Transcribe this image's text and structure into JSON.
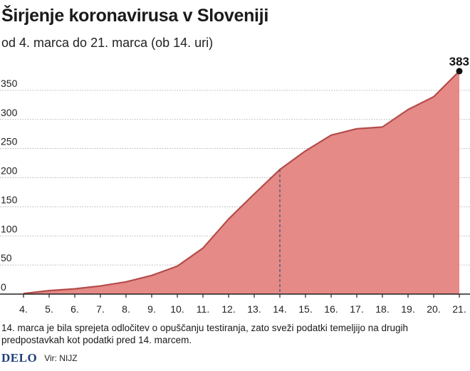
{
  "header": {
    "title": "Širjenje koronavirusa v Sloveniji",
    "subtitle": "od 4. marca do 21. marca (ob 14. uri)"
  },
  "note": "14. marca je bila sprejeta odločitev o opuščanju testiranja, zato sveži podatki temeljijo na drugih predpostavkah kot podatki pred 14. marcem.",
  "footer": {
    "logo": "DELO",
    "source": "Vir: NIJZ"
  },
  "colors": {
    "fill": "#e58a86",
    "line": "#b54c4a",
    "grid": "#9a9a9a",
    "marker_line": "#3f5a80"
  },
  "chart_data": {
    "type": "area",
    "categories": [
      "4.",
      "5.",
      "6.",
      "7.",
      "8.",
      "9.",
      "10.",
      "11.",
      "12.",
      "13.",
      "14.",
      "15.",
      "16.",
      "17.",
      "18.",
      "19.",
      "20.",
      "21."
    ],
    "values": [
      1,
      6,
      9,
      14,
      21,
      32,
      48,
      79,
      129,
      172,
      214,
      246,
      273,
      284,
      287,
      317,
      339,
      383
    ],
    "peak_label": "383",
    "marker_category": "14.",
    "yticks": [
      0,
      50,
      100,
      150,
      200,
      250,
      300,
      350
    ],
    "ylim": [
      0,
      400
    ],
    "grid": true
  }
}
